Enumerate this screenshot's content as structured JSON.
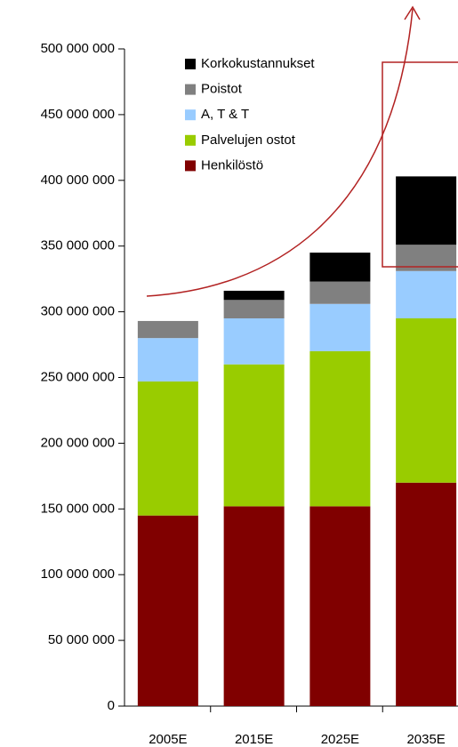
{
  "chart_data": {
    "type": "stacked_bar",
    "categories": [
      "2005E",
      "2015E",
      "2025E",
      "2035E"
    ],
    "series": [
      {
        "name": "Henkilöstö",
        "color": "#800000",
        "values": [
          145000000,
          152000000,
          152000000,
          170000000
        ]
      },
      {
        "name": "Palvelujen ostot",
        "color": "#99cc00",
        "values": [
          102000000,
          108000000,
          118000000,
          125000000
        ]
      },
      {
        "name": "A, T & T",
        "color": "#99ccff",
        "values": [
          33000000,
          35000000,
          36000000,
          36000000
        ]
      },
      {
        "name": "Poistot",
        "color": "#808080",
        "values": [
          13000000,
          14000000,
          17000000,
          20000000
        ]
      },
      {
        "name": "Korkokustannukset",
        "color": "#000000",
        "values": [
          0,
          7000000,
          22000000,
          52000000
        ]
      }
    ],
    "ylim": [
      0,
      500000000
    ],
    "yticks": [
      0,
      {
        "value": 50000000,
        "label": "50 000 000"
      },
      {
        "value": 100000000,
        "label": "100 000 000"
      },
      {
        "value": 150000000,
        "label": "150 000 000"
      },
      {
        "value": 200000000,
        "label": "200 000 000"
      },
      {
        "value": 250000000,
        "label": "250 000 000"
      },
      {
        "value": 300000000,
        "label": "300 000 000"
      },
      {
        "value": 350000000,
        "label": "350 000 000"
      },
      {
        "value": 400000000,
        "label": "400 000 000"
      },
      {
        "value": 450000000,
        "label": "450 000 000"
      },
      {
        "value": 500000000,
        "label": "500 000 000"
      }
    ],
    "legend": "top-center"
  }
}
